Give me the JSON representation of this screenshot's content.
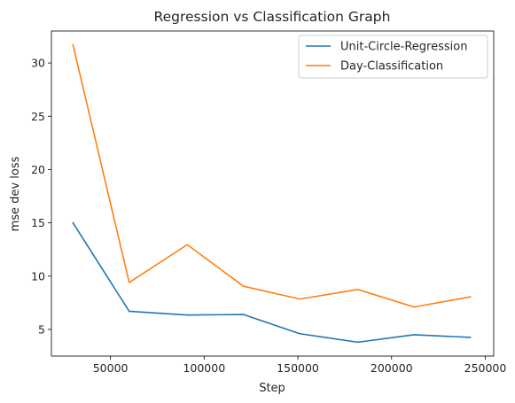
{
  "chart_data": {
    "type": "line",
    "title": "Regression vs Classification Graph",
    "xlabel": "Step",
    "ylabel": "mse dev loss",
    "xlim": [
      18500,
      254500
    ],
    "ylim": [
      2.5,
      33.0
    ],
    "xticks": [
      50000,
      100000,
      150000,
      200000,
      250000
    ],
    "yticks": [
      5,
      10,
      15,
      20,
      25,
      30
    ],
    "grid": false,
    "legend_position": "top-right",
    "x": [
      30000,
      60000,
      91000,
      121000,
      151000,
      182000,
      212000,
      242000
    ],
    "series": [
      {
        "name": "Unit-Circle-Regression",
        "color": "#1f77b4",
        "values": [
          15.0,
          6.7,
          6.35,
          6.4,
          4.6,
          3.8,
          4.5,
          4.25
        ]
      },
      {
        "name": "Day-Classification",
        "color": "#ff7f0e",
        "values": [
          31.7,
          9.4,
          12.95,
          9.05,
          7.85,
          8.75,
          7.1,
          8.05
        ]
      }
    ]
  }
}
